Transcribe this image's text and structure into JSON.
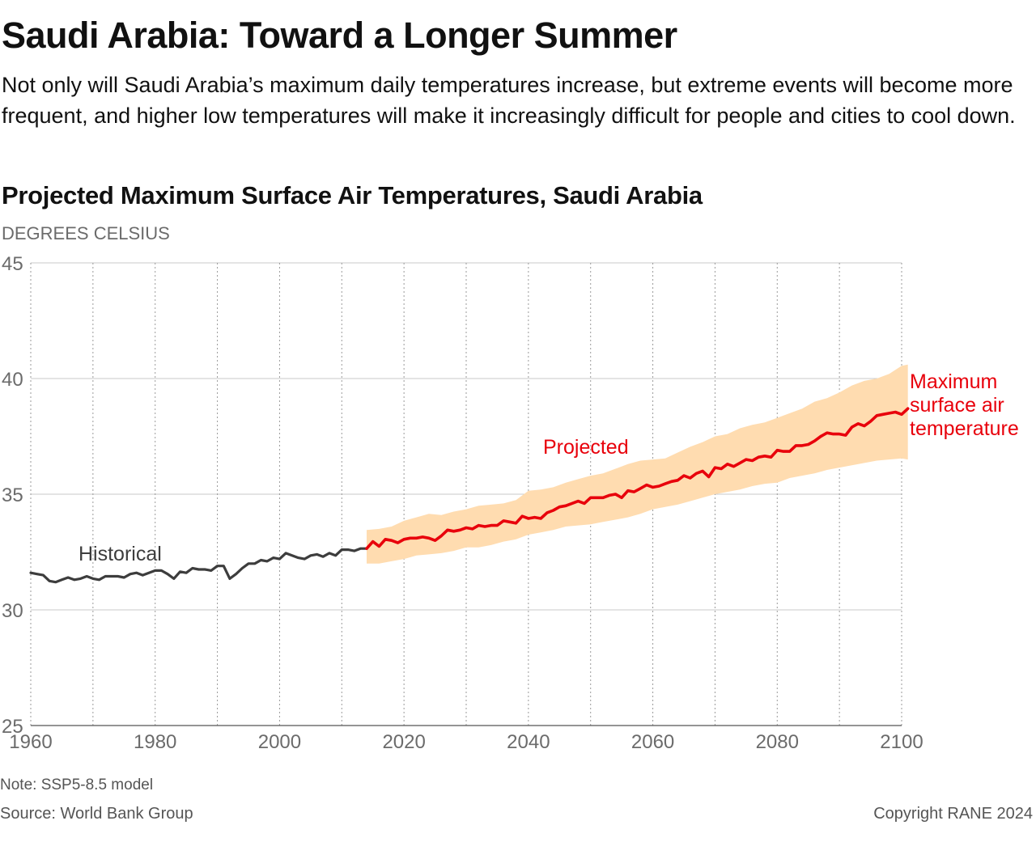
{
  "header": {
    "title": "Saudi Arabia: Toward a Longer Summer",
    "subtitle": "Not only will Saudi Arabia’s maximum daily temperatures increase, but extreme events will become more frequent, and higher low temperatures will make it increasingly difficult for people and cities to cool down."
  },
  "footer": {
    "note": "Note: SSP5-8.5 model",
    "source": "Source: World Bank Group",
    "copyright": "Copyright RANE 2024"
  },
  "colors": {
    "historical": "#3d3d3d",
    "projected": "#e8000b",
    "band": "#ffdcb0",
    "grid": "#c8c8c8",
    "axis_text": "#6b6b6b"
  },
  "chart_data": {
    "type": "line",
    "title": "Projected Maximum Surface Air Temperatures, Saudi Arabia",
    "ylabel": "DEGREES CELSIUS",
    "xlabel": "",
    "xlim": [
      1960,
      2100
    ],
    "ylim": [
      25,
      45
    ],
    "yticks": [
      25,
      30,
      35,
      40,
      45
    ],
    "xticks": [
      1960,
      1980,
      2000,
      2020,
      2040,
      2060,
      2080,
      2100
    ],
    "grid": "horizontal solid, vertical dotted every 10 years",
    "annotations": {
      "historical": "Historical",
      "projected": "Projected",
      "series_label": "Maximum surface air temperature"
    },
    "series": [
      {
        "name": "Historical",
        "points": [
          [
            1960,
            31.6
          ],
          [
            1961,
            31.55
          ],
          [
            1962,
            31.5
          ],
          [
            1963,
            31.25
          ],
          [
            1964,
            31.2
          ],
          [
            1965,
            31.3
          ],
          [
            1966,
            31.4
          ],
          [
            1967,
            31.3
          ],
          [
            1968,
            31.35
          ],
          [
            1969,
            31.45
          ],
          [
            1970,
            31.35
          ],
          [
            1971,
            31.3
          ],
          [
            1972,
            31.45
          ],
          [
            1973,
            31.45
          ],
          [
            1974,
            31.45
          ],
          [
            1975,
            31.4
          ],
          [
            1976,
            31.55
          ],
          [
            1977,
            31.6
          ],
          [
            1978,
            31.5
          ],
          [
            1979,
            31.6
          ],
          [
            1980,
            31.7
          ],
          [
            1981,
            31.7
          ],
          [
            1982,
            31.55
          ],
          [
            1983,
            31.35
          ],
          [
            1984,
            31.65
          ],
          [
            1985,
            31.6
          ],
          [
            1986,
            31.8
          ],
          [
            1987,
            31.75
          ],
          [
            1988,
            31.75
          ],
          [
            1989,
            31.7
          ],
          [
            1990,
            31.9
          ],
          [
            1991,
            31.9
          ],
          [
            1992,
            31.35
          ],
          [
            1993,
            31.55
          ],
          [
            1994,
            31.8
          ],
          [
            1995,
            32.0
          ],
          [
            1996,
            32.0
          ],
          [
            1997,
            32.15
          ],
          [
            1998,
            32.1
          ],
          [
            1999,
            32.25
          ],
          [
            2000,
            32.2
          ],
          [
            2001,
            32.45
          ],
          [
            2002,
            32.35
          ],
          [
            2003,
            32.25
          ],
          [
            2004,
            32.2
          ],
          [
            2005,
            32.35
          ],
          [
            2006,
            32.4
          ],
          [
            2007,
            32.3
          ],
          [
            2008,
            32.45
          ],
          [
            2009,
            32.35
          ],
          [
            2010,
            32.6
          ],
          [
            2011,
            32.6
          ],
          [
            2012,
            32.55
          ],
          [
            2013,
            32.65
          ],
          [
            2014,
            32.65
          ]
        ]
      },
      {
        "name": "Projected",
        "points": [
          [
            2014,
            32.65
          ],
          [
            2015,
            32.95
          ],
          [
            2016,
            32.75
          ],
          [
            2017,
            33.05
          ],
          [
            2018,
            33.0
          ],
          [
            2019,
            32.9
          ],
          [
            2020,
            33.05
          ],
          [
            2021,
            33.1
          ],
          [
            2022,
            33.1
          ],
          [
            2023,
            33.15
          ],
          [
            2024,
            33.1
          ],
          [
            2025,
            33.0
          ],
          [
            2026,
            33.2
          ],
          [
            2027,
            33.45
          ],
          [
            2028,
            33.4
          ],
          [
            2029,
            33.45
          ],
          [
            2030,
            33.55
          ],
          [
            2031,
            33.5
          ],
          [
            2032,
            33.65
          ],
          [
            2033,
            33.6
          ],
          [
            2034,
            33.65
          ],
          [
            2035,
            33.65
          ],
          [
            2036,
            33.85
          ],
          [
            2037,
            33.8
          ],
          [
            2038,
            33.75
          ],
          [
            2039,
            34.05
          ],
          [
            2040,
            33.95
          ],
          [
            2041,
            34.0
          ],
          [
            2042,
            33.95
          ],
          [
            2043,
            34.2
          ],
          [
            2044,
            34.3
          ],
          [
            2045,
            34.45
          ],
          [
            2046,
            34.5
          ],
          [
            2047,
            34.6
          ],
          [
            2048,
            34.7
          ],
          [
            2049,
            34.6
          ],
          [
            2050,
            34.85
          ],
          [
            2051,
            34.85
          ],
          [
            2052,
            34.85
          ],
          [
            2053,
            34.95
          ],
          [
            2054,
            35.0
          ],
          [
            2055,
            34.85
          ],
          [
            2056,
            35.15
          ],
          [
            2057,
            35.1
          ],
          [
            2058,
            35.25
          ],
          [
            2059,
            35.4
          ],
          [
            2060,
            35.3
          ],
          [
            2061,
            35.35
          ],
          [
            2062,
            35.45
          ],
          [
            2063,
            35.55
          ],
          [
            2064,
            35.6
          ],
          [
            2065,
            35.8
          ],
          [
            2066,
            35.7
          ],
          [
            2067,
            35.9
          ],
          [
            2068,
            36.0
          ],
          [
            2069,
            35.75
          ],
          [
            2070,
            36.15
          ],
          [
            2071,
            36.1
          ],
          [
            2072,
            36.3
          ],
          [
            2073,
            36.2
          ],
          [
            2074,
            36.35
          ],
          [
            2075,
            36.5
          ],
          [
            2076,
            36.45
          ],
          [
            2077,
            36.6
          ],
          [
            2078,
            36.65
          ],
          [
            2079,
            36.6
          ],
          [
            2080,
            36.9
          ],
          [
            2081,
            36.85
          ],
          [
            2082,
            36.85
          ],
          [
            2083,
            37.1
          ],
          [
            2084,
            37.1
          ],
          [
            2085,
            37.15
          ],
          [
            2086,
            37.3
          ],
          [
            2087,
            37.5
          ],
          [
            2088,
            37.65
          ],
          [
            2089,
            37.6
          ],
          [
            2090,
            37.6
          ],
          [
            2091,
            37.55
          ],
          [
            2092,
            37.9
          ],
          [
            2093,
            38.05
          ],
          [
            2094,
            37.95
          ],
          [
            2095,
            38.15
          ],
          [
            2096,
            38.4
          ],
          [
            2097,
            38.45
          ],
          [
            2098,
            38.5
          ],
          [
            2099,
            38.55
          ],
          [
            2100,
            38.45
          ],
          [
            2101,
            38.7
          ]
        ]
      }
    ],
    "band": {
      "name": "Projected range",
      "upper": [
        [
          2014,
          33.45
        ],
        [
          2016,
          33.5
        ],
        [
          2018,
          33.6
        ],
        [
          2020,
          33.85
        ],
        [
          2022,
          34.0
        ],
        [
          2024,
          34.15
        ],
        [
          2026,
          34.1
        ],
        [
          2028,
          34.25
        ],
        [
          2030,
          34.35
        ],
        [
          2032,
          34.5
        ],
        [
          2034,
          34.55
        ],
        [
          2036,
          34.6
        ],
        [
          2038,
          34.75
        ],
        [
          2040,
          35.15
        ],
        [
          2042,
          35.2
        ],
        [
          2044,
          35.3
        ],
        [
          2046,
          35.5
        ],
        [
          2048,
          35.65
        ],
        [
          2050,
          35.8
        ],
        [
          2052,
          35.9
        ],
        [
          2054,
          36.1
        ],
        [
          2056,
          36.3
        ],
        [
          2058,
          36.45
        ],
        [
          2060,
          36.5
        ],
        [
          2062,
          36.55
        ],
        [
          2064,
          36.8
        ],
        [
          2066,
          37.05
        ],
        [
          2068,
          37.25
        ],
        [
          2070,
          37.5
        ],
        [
          2072,
          37.6
        ],
        [
          2074,
          37.85
        ],
        [
          2076,
          38.0
        ],
        [
          2078,
          38.1
        ],
        [
          2080,
          38.3
        ],
        [
          2082,
          38.5
        ],
        [
          2084,
          38.7
        ],
        [
          2086,
          39.0
        ],
        [
          2088,
          39.15
        ],
        [
          2090,
          39.4
        ],
        [
          2092,
          39.7
        ],
        [
          2094,
          39.9
        ],
        [
          2096,
          40.0
        ],
        [
          2098,
          40.2
        ],
        [
          2100,
          40.55
        ],
        [
          2101,
          40.6
        ]
      ],
      "lower": [
        [
          2014,
          32.0
        ],
        [
          2016,
          32.0
        ],
        [
          2018,
          32.1
        ],
        [
          2020,
          32.2
        ],
        [
          2022,
          32.35
        ],
        [
          2024,
          32.4
        ],
        [
          2026,
          32.45
        ],
        [
          2028,
          32.55
        ],
        [
          2030,
          32.7
        ],
        [
          2032,
          32.7
        ],
        [
          2034,
          32.8
        ],
        [
          2036,
          32.95
        ],
        [
          2038,
          33.05
        ],
        [
          2040,
          33.25
        ],
        [
          2042,
          33.35
        ],
        [
          2044,
          33.45
        ],
        [
          2046,
          33.6
        ],
        [
          2048,
          33.65
        ],
        [
          2050,
          33.7
        ],
        [
          2052,
          33.8
        ],
        [
          2054,
          33.9
        ],
        [
          2056,
          34.0
        ],
        [
          2058,
          34.15
        ],
        [
          2060,
          34.35
        ],
        [
          2062,
          34.45
        ],
        [
          2064,
          34.55
        ],
        [
          2066,
          34.7
        ],
        [
          2068,
          34.85
        ],
        [
          2070,
          35.0
        ],
        [
          2072,
          35.1
        ],
        [
          2074,
          35.2
        ],
        [
          2076,
          35.35
        ],
        [
          2078,
          35.45
        ],
        [
          2080,
          35.5
        ],
        [
          2082,
          35.7
        ],
        [
          2084,
          35.8
        ],
        [
          2086,
          35.9
        ],
        [
          2088,
          36.05
        ],
        [
          2090,
          36.15
        ],
        [
          2092,
          36.25
        ],
        [
          2094,
          36.35
        ],
        [
          2096,
          36.45
        ],
        [
          2098,
          36.5
        ],
        [
          2100,
          36.55
        ],
        [
          2101,
          36.5
        ]
      ]
    }
  }
}
